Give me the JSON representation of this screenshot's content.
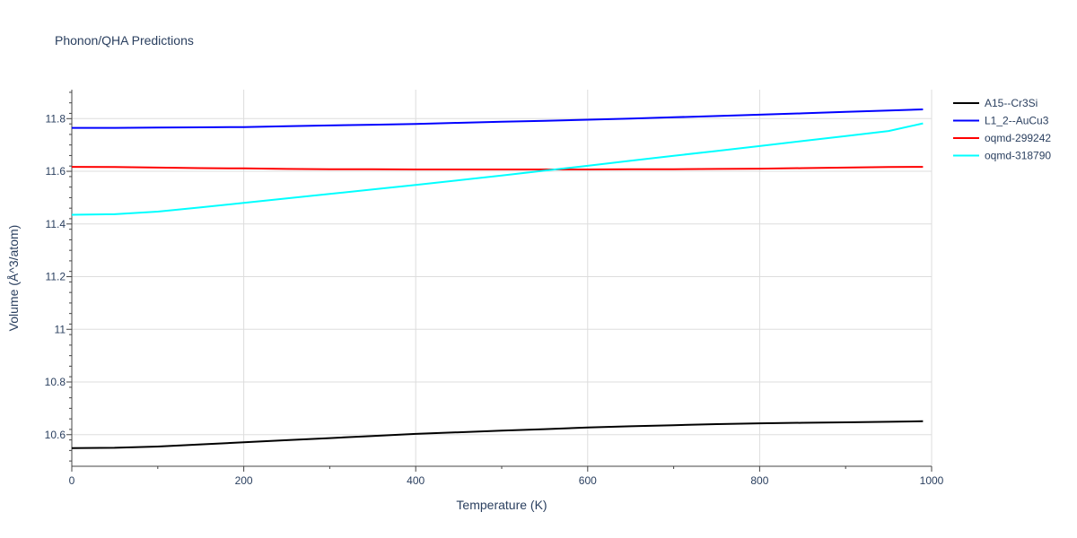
{
  "chart_data": {
    "type": "line",
    "title": "Phonon/QHA Predictions",
    "xlabel": "Temperature (K)",
    "ylabel": "Volume (Å^3/atom)",
    "xlim": [
      0,
      1000
    ],
    "ylim": [
      10.48,
      11.91
    ],
    "x_ticks": [
      0,
      200,
      400,
      600,
      800,
      1000
    ],
    "y_ticks": [
      10.6,
      10.8,
      11,
      11.2,
      11.4,
      11.6,
      11.8
    ],
    "x_tick_labels": [
      "0",
      "200",
      "400",
      "600",
      "800",
      "1000"
    ],
    "y_tick_labels": [
      "10.6",
      "10.8",
      "11",
      "11.2",
      "11.4",
      "11.6",
      "11.8"
    ],
    "grid": true,
    "legend_position": "top-right",
    "series": [
      {
        "name": "A15--Cr3Si",
        "color": "#000000",
        "x": [
          0,
          50,
          100,
          150,
          200,
          250,
          300,
          350,
          400,
          450,
          500,
          550,
          600,
          650,
          700,
          750,
          800,
          850,
          900,
          950,
          990
        ],
        "y": [
          10.549,
          10.55,
          10.555,
          10.563,
          10.571,
          10.579,
          10.587,
          10.595,
          10.603,
          10.609,
          10.615,
          10.621,
          10.627,
          10.632,
          10.636,
          10.64,
          10.643,
          10.645,
          10.647,
          10.649,
          10.651
        ]
      },
      {
        "name": "L1_2--AuCu3",
        "color": "#0000ff",
        "x": [
          0,
          50,
          100,
          150,
          200,
          250,
          300,
          350,
          400,
          450,
          500,
          550,
          600,
          650,
          700,
          750,
          800,
          850,
          900,
          950,
          990
        ],
        "y": [
          11.765,
          11.765,
          11.766,
          11.767,
          11.768,
          11.771,
          11.774,
          11.777,
          11.78,
          11.784,
          11.788,
          11.792,
          11.796,
          11.8,
          11.805,
          11.81,
          11.815,
          11.82,
          11.826,
          11.831,
          11.835
        ]
      },
      {
        "name": "oqmd-299242",
        "color": "#ff0000",
        "x": [
          0,
          50,
          100,
          150,
          200,
          250,
          300,
          350,
          400,
          450,
          500,
          550,
          600,
          650,
          700,
          750,
          800,
          850,
          900,
          950,
          990
        ],
        "y": [
          11.617,
          11.616,
          11.614,
          11.612,
          11.611,
          11.609,
          11.608,
          11.608,
          11.607,
          11.607,
          11.607,
          11.607,
          11.607,
          11.608,
          11.608,
          11.609,
          11.61,
          11.612,
          11.614,
          11.616,
          11.617
        ]
      },
      {
        "name": "oqmd-318790",
        "color": "#00ffff",
        "x": [
          0,
          50,
          100,
          150,
          200,
          250,
          300,
          350,
          400,
          450,
          500,
          550,
          600,
          650,
          700,
          750,
          800,
          850,
          900,
          950,
          990
        ],
        "y": [
          11.435,
          11.437,
          11.447,
          11.463,
          11.48,
          11.497,
          11.514,
          11.531,
          11.548,
          11.566,
          11.584,
          11.603,
          11.621,
          11.64,
          11.659,
          11.677,
          11.696,
          11.715,
          11.734,
          11.753,
          11.782
        ]
      }
    ]
  }
}
